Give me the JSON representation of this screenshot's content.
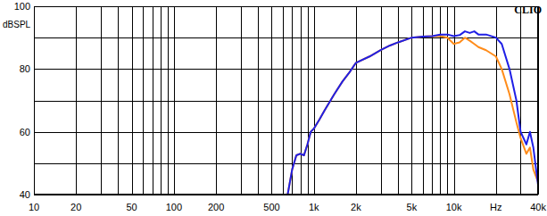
{
  "chart_data": {
    "type": "line",
    "title": "CLIO",
    "y_label": "dBSPL",
    "log": "x",
    "grid": true,
    "xlim": [
      10,
      40000
    ],
    "ylim": [
      40,
      100
    ],
    "xticks": [
      10,
      20,
      50,
      100,
      200,
      500,
      {
        "value": 1000,
        "label": "1k"
      },
      {
        "value": 2000,
        "label": "2k"
      },
      {
        "value": 5000,
        "label": "5k"
      },
      {
        "value": 10000,
        "label": "10k"
      },
      {
        "value": 20000,
        "label": "Hz"
      },
      {
        "value": 40000,
        "label": "40k"
      }
    ],
    "yticks": [
      40,
      60,
      80,
      100
    ],
    "x": [
      650,
      700,
      750,
      800,
      850,
      900,
      950,
      1000,
      1100,
      1200,
      1400,
      1600,
      1800,
      2000,
      2500,
      3000,
      3500,
      4000,
      5000,
      6000,
      7000,
      8000,
      9000,
      10000,
      11000,
      12000,
      13000,
      14000,
      15000,
      17000,
      20000,
      22000,
      25000,
      28000,
      30000,
      33000,
      35000,
      37000,
      40000
    ],
    "series": [
      {
        "color": "#1f1fe6",
        "values": [
          40,
          48,
          52.5,
          53,
          52.5,
          56,
          60,
          61,
          64,
          67,
          72,
          76,
          79,
          82,
          84,
          86,
          87.5,
          88.5,
          90,
          90.3,
          90.5,
          91,
          91,
          90.5,
          90.8,
          92,
          91.5,
          92,
          91,
          91,
          90,
          88,
          80,
          70,
          60,
          56,
          60,
          55,
          43
        ]
      },
      {
        "color": "#ff8c1a",
        "values": [
          40,
          48,
          52.5,
          53,
          52.5,
          56,
          60,
          61,
          64,
          67,
          72,
          76,
          79,
          82,
          84,
          86,
          87.5,
          88.5,
          90,
          90.3,
          90.5,
          90.5,
          90,
          88,
          88.5,
          90,
          89,
          88,
          87,
          86,
          84,
          80,
          72,
          63,
          58,
          53,
          55,
          48,
          44
        ]
      }
    ]
  }
}
